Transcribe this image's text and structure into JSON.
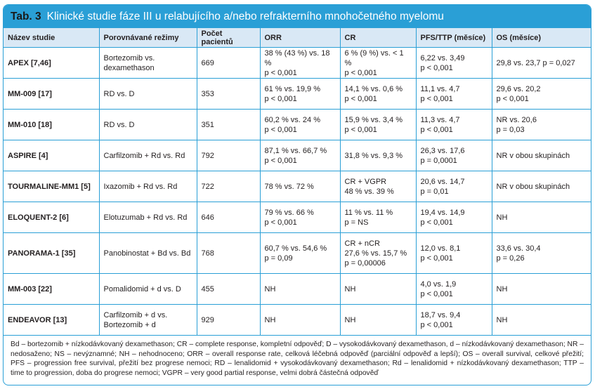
{
  "title": {
    "number": "Tab. 3",
    "text": "Klinické studie fáze III u relabujícího a/nebo refrakterního mnohočetného myelomu"
  },
  "headers": [
    "Název studie",
    "Porovnávané režimy",
    "Počet pacientů",
    "ORR",
    "CR",
    "PFS/TTP (měsíce)",
    "OS (měsíce)"
  ],
  "rows": [
    {
      "name": "APEX [7,46]",
      "regimen": [
        "Bortezomib vs.",
        "dexamethason"
      ],
      "patients": "669",
      "orr": [
        "38 % (43 %) vs. 18 %",
        "p < 0,001"
      ],
      "cr": [
        "6 % (9 %) vs. < 1 %",
        "p < 0,001"
      ],
      "pfs": [
        "6,22 vs. 3,49",
        "p < 0,001"
      ],
      "os": [
        "29,8 vs. 23,7 p = 0,027"
      ]
    },
    {
      "name": "MM-009 [17]",
      "regimen": [
        "RD vs. D"
      ],
      "patients": "353",
      "orr": [
        "61 % vs. 19,9 %",
        "p < 0,001"
      ],
      "cr": [
        "14,1 % vs. 0,6 %",
        "p < 0,001"
      ],
      "pfs": [
        "11,1 vs. 4,7",
        "p < 0,001"
      ],
      "os": [
        "29,6 vs. 20,2",
        "p < 0,001"
      ]
    },
    {
      "name": "MM-010 [18]",
      "regimen": [
        "RD vs. D"
      ],
      "patients": "351",
      "orr": [
        "60,2 % vs. 24 %",
        "p < 0,001"
      ],
      "cr": [
        "15,9 % vs. 3,4 %",
        "p < 0,001"
      ],
      "pfs": [
        "11,3 vs. 4,7",
        "p < 0,001"
      ],
      "os": [
        "NR vs. 20,6",
        "p = 0,03"
      ]
    },
    {
      "name": "ASPIRE [4]",
      "regimen": [
        "Carfilzomib + Rd vs. Rd"
      ],
      "patients": "792",
      "orr": [
        "87,1 % vs. 66,7 %",
        "p < 0,001"
      ],
      "cr": [
        "31,8 % vs. 9,3 %"
      ],
      "pfs": [
        "26,3 vs. 17,6",
        "p = 0,0001"
      ],
      "os": [
        "NR v obou skupinách"
      ]
    },
    {
      "name": "TOURMALINE-MM1 [5]",
      "regimen": [
        "Ixazomib + Rd vs. Rd"
      ],
      "patients": "722",
      "orr": [
        "78 % vs. 72 %"
      ],
      "cr": [
        "CR + VGPR",
        "48 % vs. 39 %"
      ],
      "pfs": [
        "20,6 vs. 14,7",
        "p = 0,01"
      ],
      "os": [
        "NR v obou skupinách"
      ]
    },
    {
      "name": "ELOQUENT-2 [6]",
      "regimen": [
        "Elotuzumab + Rd vs. Rd"
      ],
      "patients": "646",
      "orr": [
        "79 % vs. 66 %",
        "p < 0,001"
      ],
      "cr": [
        "11 % vs. 11 %",
        "p = NS"
      ],
      "pfs": [
        "19,4 vs. 14,9",
        "p < 0,001"
      ],
      "os": [
        "NH"
      ]
    },
    {
      "name": "PANORAMA-1 [35]",
      "regimen": [
        "Panobinostat + Bd vs. Bd"
      ],
      "patients": "768",
      "orr": [
        "60,7 % vs. 54,6 %",
        "p = 0,09"
      ],
      "cr": [
        "CR + nCR",
        "27,6 % vs. 15,7 %",
        "p = 0,00006"
      ],
      "pfs": [
        "12,0 vs. 8,1",
        "p < 0,001"
      ],
      "os": [
        "33,6 vs. 30,4",
        "p = 0,26"
      ]
    },
    {
      "name": "MM-003 [22]",
      "regimen": [
        "Pomalidomid + d vs. D"
      ],
      "patients": "455",
      "orr": [
        "NH"
      ],
      "cr": [
        "NH"
      ],
      "pfs": [
        "4,0 vs. 1,9",
        "p < 0,001"
      ],
      "os": [
        "NH"
      ]
    },
    {
      "name": "ENDEAVOR [13]",
      "regimen": [
        "Carfilzomib + d vs.",
        "Bortezomib + d"
      ],
      "patients": "929",
      "orr": [
        "NH"
      ],
      "cr": [
        "NH"
      ],
      "pfs": [
        "18,7 vs. 9,4",
        "p < 0,001"
      ],
      "os": [
        "NH"
      ]
    }
  ],
  "footnote": "Bd – bortezomib + nízkodávkovaný dexamethason; CR – complete response, kompletní odpověď; D – vysokodávkovaný dexamethason, d – nízkodávkovaný dexamethason; NR – nedosaženo; NS – nevýznamné; NH – nehodnoceno; ORR – overall response rate, celková léčebná odpověď (parciální odpověď a lepší); OS – overall survival, celkové přežití; PFS – progression free survival, přežití bez progrese nemoci; RD – lenalidomid + vysokodávkovaný dexamethason; Rd – lenalidomid + nízkodávkovaný dexamethason; TTP – time to progression, doba do progrese nemoci; VGPR – very good partial response, velmi dobrá částečná odpověď",
  "colors": {
    "accent": "#2a9fd6",
    "header_bg": "#d9e8f5"
  }
}
